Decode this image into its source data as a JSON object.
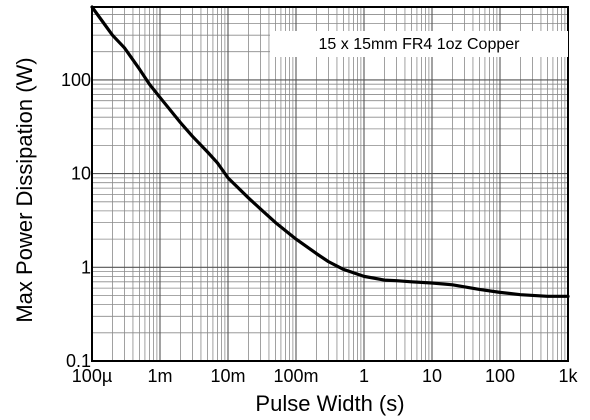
{
  "chart_data": {
    "type": "line",
    "title": "",
    "xlabel": "Pulse Width (s)",
    "ylabel": "Max Power Dissipation (W)",
    "x_scale": "log",
    "y_scale": "log",
    "xlim": [
      0.0001,
      1000
    ],
    "ylim": [
      0.1,
      600
    ],
    "grid": true,
    "x_ticks": [
      {
        "value": 0.0001,
        "label": "100µ"
      },
      {
        "value": 0.001,
        "label": "1m"
      },
      {
        "value": 0.01,
        "label": "10m"
      },
      {
        "value": 0.1,
        "label": "100m"
      },
      {
        "value": 1,
        "label": "1"
      },
      {
        "value": 10,
        "label": "10"
      },
      {
        "value": 100,
        "label": "100"
      },
      {
        "value": 1000,
        "label": "1k"
      }
    ],
    "y_ticks": [
      {
        "value": 0.1,
        "label": "0.1"
      },
      {
        "value": 1,
        "label": "1"
      },
      {
        "value": 10,
        "label": "10"
      },
      {
        "value": 100,
        "label": "100"
      }
    ],
    "annotation": "15 x 15mm FR4 1oz Copper",
    "series": [
      {
        "color": "#000000",
        "x": [
          0.0001,
          0.00015,
          0.0002,
          0.0003,
          0.0005,
          0.0007,
          0.001,
          0.002,
          0.003,
          0.005,
          0.007,
          0.01,
          0.02,
          0.03,
          0.05,
          0.1,
          0.2,
          0.3,
          0.5,
          1,
          2,
          3,
          5,
          10,
          20,
          50,
          100,
          200,
          500,
          1000
        ],
        "y": [
          600,
          400,
          300,
          220,
          130,
          90,
          65,
          35,
          25,
          17,
          13,
          9,
          5.5,
          4.2,
          3,
          2,
          1.4,
          1.15,
          0.95,
          0.8,
          0.73,
          0.72,
          0.7,
          0.68,
          0.65,
          0.58,
          0.54,
          0.51,
          0.49,
          0.49
        ]
      }
    ]
  }
}
